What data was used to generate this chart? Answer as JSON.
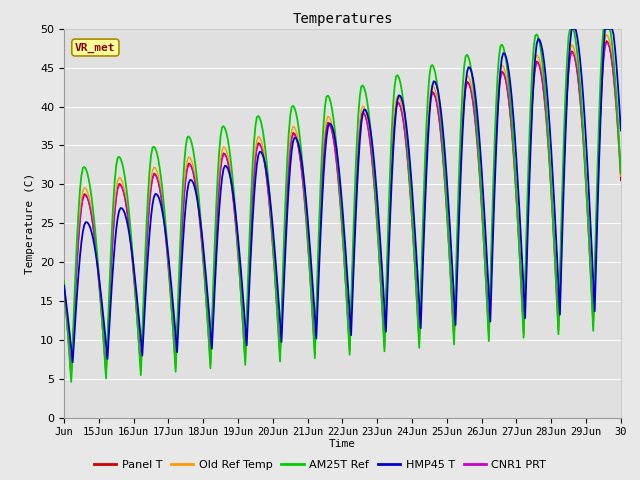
{
  "title": "Temperatures",
  "xlabel": "Time",
  "ylabel": "Temperature (C)",
  "annotation": "VR_met",
  "ylim": [
    0,
    50
  ],
  "xlim_days": [
    14,
    30
  ],
  "x_tick_labels": [
    "Jun",
    "15Jun",
    "16Jun",
    "17Jun",
    "18Jun",
    "19Jun",
    "20Jun",
    "21Jun",
    "22Jun",
    "23Jun",
    "24Jun",
    "25Jun",
    "26Jun",
    "27Jun",
    "28Jun",
    "29Jun",
    "30"
  ],
  "x_tick_positions": [
    14,
    15,
    16,
    17,
    18,
    19,
    20,
    21,
    22,
    23,
    24,
    25,
    26,
    27,
    28,
    29,
    30
  ],
  "series": {
    "Panel T": "#cc0000",
    "Old Ref Temp": "#ff9900",
    "AM25T Ref": "#00cc00",
    "HMP45 T": "#0000cc",
    "CNR1 PRT": "#cc00cc"
  },
  "background_color": "#e8e8e8",
  "plot_bg_color": "#e0e0e0",
  "grid_color": "#ffffff",
  "title_fontsize": 10,
  "annotation_bg": "#ffff99",
  "annotation_border": "#aa8800",
  "fig_bg": "#e8e8e8"
}
